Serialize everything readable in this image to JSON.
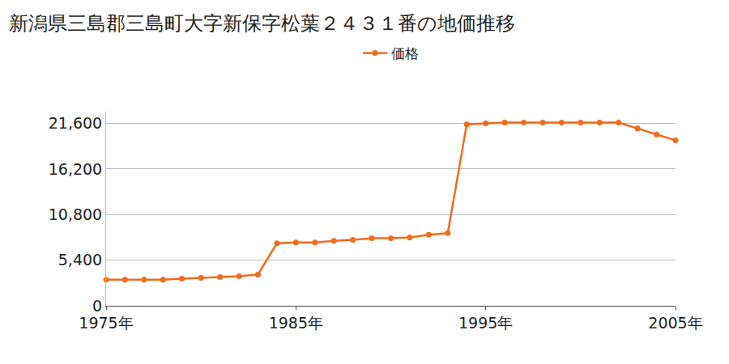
{
  "chart_data": {
    "type": "line",
    "title": "新潟県三島郡三島町大字新保字松葉２４３１番の地価推移",
    "x": [
      1975,
      1976,
      1977,
      1978,
      1979,
      1980,
      1981,
      1982,
      1983,
      1984,
      1985,
      1986,
      1987,
      1988,
      1989,
      1990,
      1991,
      1992,
      1993,
      1994,
      1995,
      1996,
      1997,
      1998,
      1999,
      2000,
      2001,
      2002,
      2003,
      2004,
      2005
    ],
    "series": [
      {
        "name": "価格",
        "color": "#f26b1d",
        "marker": "circle",
        "values": [
          3100,
          3100,
          3100,
          3100,
          3200,
          3300,
          3400,
          3500,
          3700,
          7400,
          7500,
          7500,
          7700,
          7800,
          8000,
          8000,
          8100,
          8400,
          8600,
          21500,
          21600,
          21700,
          21700,
          21700,
          21700,
          21700,
          21700,
          21700,
          21000,
          20300,
          19600
        ]
      }
    ],
    "xlim": [
      1975,
      2005
    ],
    "xticks": [
      {
        "value": 1975,
        "label": "1975年"
      },
      {
        "value": 1985,
        "label": "1985年"
      },
      {
        "value": 1995,
        "label": "1995年"
      },
      {
        "value": 2005,
        "label": "2005年"
      }
    ],
    "ylim": [
      0,
      23000
    ],
    "yticks": [
      0,
      {
        "value": 5400,
        "label": "5,400"
      },
      {
        "value": 10800,
        "label": "10,800"
      },
      {
        "value": 16200,
        "label": "16,200"
      },
      {
        "value": 21600,
        "label": "21,600"
      }
    ],
    "grid": true,
    "legend": "top"
  }
}
